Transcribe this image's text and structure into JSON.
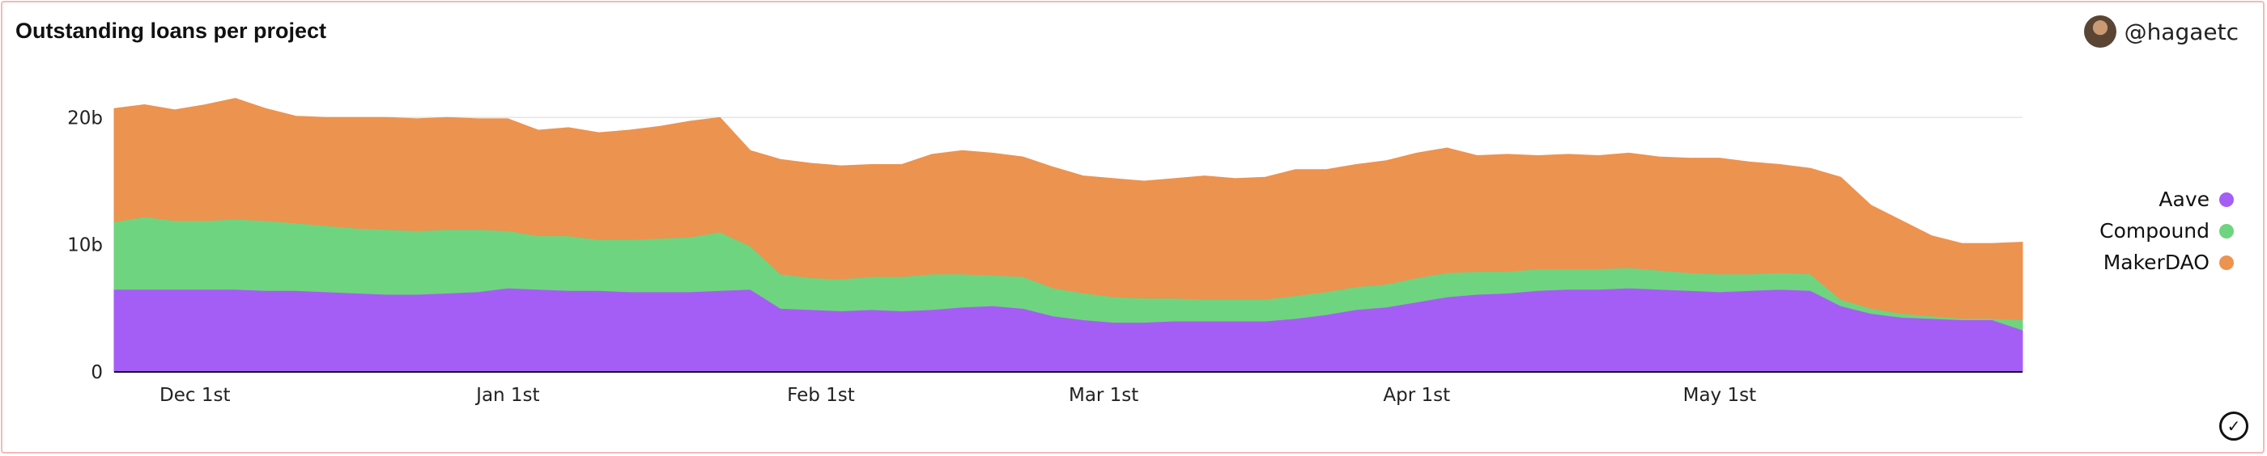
{
  "header": {
    "title": "Outstanding loans per project",
    "user_handle": "@hagaetc"
  },
  "footer": {
    "status_icon": "check-circle-icon"
  },
  "colors": {
    "Aave": "#a55ef5",
    "Compound": "#6fd47f",
    "MakerDAO": "#ec9350"
  },
  "chart_data": {
    "type": "area",
    "stacked": true,
    "title": "Outstanding loans per project",
    "xlabel": "",
    "ylabel": "",
    "x_start": "2020-11-23",
    "x_end": "2021-05-31",
    "ylim": [
      0,
      20.4
    ],
    "y_ticks": [
      {
        "value": 0,
        "label": "0"
      },
      {
        "value": 10,
        "label": "10b"
      },
      {
        "value": 20,
        "label": "20b"
      }
    ],
    "x_ticks": [
      {
        "date": "2020-12-01",
        "label": "Dec 1st"
      },
      {
        "date": "2021-01-01",
        "label": "Jan 1st"
      },
      {
        "date": "2021-02-01",
        "label": "Feb 1st"
      },
      {
        "date": "2021-03-01",
        "label": "Mar 1st"
      },
      {
        "date": "2021-04-01",
        "label": "Apr 1st"
      },
      {
        "date": "2021-05-01",
        "label": "May 1st"
      }
    ],
    "grid": "horizontal",
    "legend_position": "right",
    "x": [
      "2020-11-23",
      "2020-11-26",
      "2020-11-29",
      "2020-12-02",
      "2020-12-05",
      "2020-12-08",
      "2020-12-11",
      "2020-12-14",
      "2020-12-17",
      "2020-12-20",
      "2020-12-23",
      "2020-12-26",
      "2020-12-29",
      "2021-01-01",
      "2021-01-04",
      "2021-01-07",
      "2021-01-10",
      "2021-01-13",
      "2021-01-16",
      "2021-01-19",
      "2021-01-22",
      "2021-01-25",
      "2021-01-28",
      "2021-01-31",
      "2021-02-03",
      "2021-02-06",
      "2021-02-09",
      "2021-02-12",
      "2021-02-15",
      "2021-02-18",
      "2021-02-21",
      "2021-02-24",
      "2021-02-27",
      "2021-03-02",
      "2021-03-05",
      "2021-03-08",
      "2021-03-11",
      "2021-03-14",
      "2021-03-17",
      "2021-03-20",
      "2021-03-23",
      "2021-03-26",
      "2021-03-29",
      "2021-04-01",
      "2021-04-04",
      "2021-04-07",
      "2021-04-10",
      "2021-04-13",
      "2021-04-16",
      "2021-04-19",
      "2021-04-22",
      "2021-04-25",
      "2021-04-28",
      "2021-05-01",
      "2021-05-04",
      "2021-05-07",
      "2021-05-10",
      "2021-05-13",
      "2021-05-16",
      "2021-05-19",
      "2021-05-22",
      "2021-05-25",
      "2021-05-28",
      "2021-05-31"
    ],
    "series": [
      {
        "name": "Aave",
        "values": [
          6.5,
          6.5,
          6.5,
          6.5,
          6.5,
          6.4,
          6.4,
          6.3,
          6.2,
          6.1,
          6.1,
          6.2,
          6.3,
          6.6,
          6.5,
          6.4,
          6.4,
          6.3,
          6.3,
          6.3,
          6.4,
          6.5,
          5.0,
          4.9,
          4.8,
          4.9,
          4.8,
          4.9,
          5.1,
          5.2,
          5.0,
          4.4,
          4.1,
          3.9,
          3.9,
          4.0,
          4.0,
          4.0,
          4.0,
          4.2,
          4.5,
          4.9,
          5.1,
          5.5,
          5.9,
          6.1,
          6.2,
          6.4,
          6.5,
          6.5,
          6.6,
          6.5,
          6.4,
          6.3,
          6.4,
          6.5,
          6.4,
          5.2,
          4.6,
          4.3,
          4.2,
          4.1,
          4.1,
          3.3
        ]
      },
      {
        "name": "Compound",
        "values": [
          5.3,
          5.7,
          5.4,
          5.4,
          5.5,
          5.5,
          5.3,
          5.2,
          5.1,
          5.1,
          5.0,
          5.0,
          4.9,
          4.5,
          4.2,
          4.3,
          4.0,
          4.1,
          4.2,
          4.3,
          4.6,
          3.4,
          2.7,
          2.5,
          2.5,
          2.6,
          2.7,
          2.8,
          2.6,
          2.4,
          2.5,
          2.2,
          2.1,
          2.0,
          1.9,
          1.8,
          1.7,
          1.7,
          1.7,
          1.8,
          1.8,
          1.8,
          1.8,
          1.9,
          1.9,
          1.8,
          1.7,
          1.7,
          1.6,
          1.6,
          1.6,
          1.5,
          1.4,
          1.4,
          1.3,
          1.3,
          1.3,
          0.5,
          0.4,
          0.3,
          0.2,
          0.1,
          0.1,
          0.8
        ]
      },
      {
        "name": "MakerDAO",
        "values": [
          8.9,
          8.8,
          8.7,
          9.1,
          9.5,
          8.8,
          8.4,
          8.5,
          8.7,
          8.8,
          8.8,
          8.8,
          8.7,
          8.8,
          8.3,
          8.5,
          8.4,
          8.6,
          8.8,
          9.1,
          9.0,
          7.5,
          9.0,
          9.0,
          8.9,
          8.8,
          8.8,
          9.4,
          9.7,
          9.6,
          9.4,
          9.5,
          9.2,
          9.3,
          9.2,
          9.4,
          9.7,
          9.5,
          9.6,
          9.9,
          9.6,
          9.6,
          9.7,
          9.8,
          9.8,
          9.1,
          9.2,
          8.9,
          9.0,
          8.9,
          9.0,
          8.9,
          9.0,
          9.1,
          8.8,
          8.5,
          8.3,
          9.6,
          8.1,
          7.3,
          6.3,
          5.9,
          5.9,
          6.1
        ]
      }
    ]
  }
}
